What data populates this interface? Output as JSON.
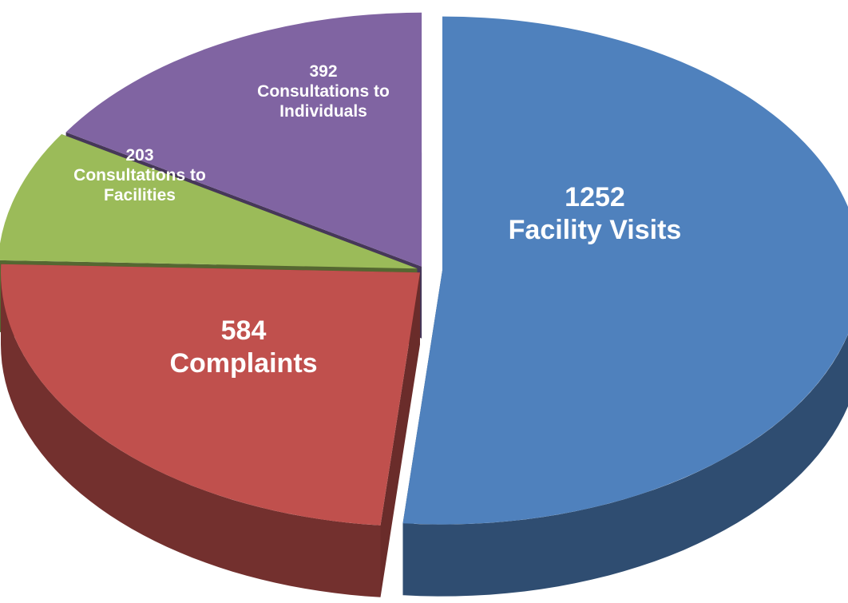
{
  "chart_data": {
    "type": "pie",
    "categories": [
      "Facility Visits",
      "Complaints",
      "Consultations to Facilities",
      "Consultations to Individuals"
    ],
    "values": [
      1252,
      584,
      203,
      392
    ],
    "colors": [
      "#4f81bd",
      "#c0504d",
      "#9bbb59",
      "#8064a2"
    ],
    "start_angle": 0,
    "direction": "clockwise",
    "three_d": true,
    "legend": false
  }
}
